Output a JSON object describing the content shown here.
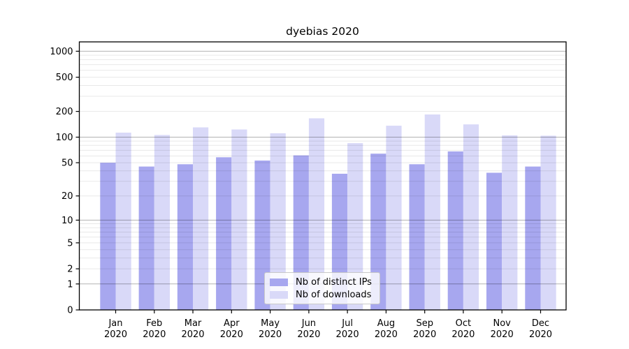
{
  "figure": {
    "title": "dyebias 2020"
  },
  "chart_data": {
    "type": "bar",
    "title": "dyebias 2020",
    "x_categories": [
      "Jan",
      "Feb",
      "Mar",
      "Apr",
      "May",
      "Jun",
      "Jul",
      "Aug",
      "Sep",
      "Oct",
      "Nov",
      "Dec"
    ],
    "x_year_label": "2020",
    "series": [
      {
        "name": "Nb of distinct IPs",
        "color": "#a7a7ef",
        "values": [
          50,
          45,
          48,
          58,
          53,
          61,
          37,
          64,
          48,
          68,
          38,
          45
        ]
      },
      {
        "name": "Nb of downloads",
        "color": "#d9d9f8",
        "values": [
          113,
          106,
          130,
          123,
          111,
          166,
          85,
          136,
          184,
          141,
          105,
          104
        ]
      }
    ],
    "y_scale": "log10(1+x)",
    "ylim": [
      0,
      1290
    ],
    "y_tick_values": [
      0,
      1,
      2,
      5,
      10,
      20,
      50,
      100,
      200,
      500,
      1000
    ],
    "y_major_gridlines": [
      1,
      10,
      100,
      1000
    ],
    "y_minor_gridlines": [
      2,
      3,
      4,
      5,
      6,
      7,
      8,
      9,
      20,
      30,
      40,
      50,
      60,
      70,
      80,
      90,
      200,
      300,
      400,
      500,
      600,
      700,
      800,
      900
    ],
    "grid": true,
    "legend": {
      "position": "lower center",
      "labels": [
        "Nb of distinct IPs",
        "Nb of downloads"
      ]
    },
    "colors": {
      "major_grid": "#b0b0b0",
      "minor_grid": "#e8e8e8",
      "spine": "#000000",
      "text": "#000000"
    }
  }
}
